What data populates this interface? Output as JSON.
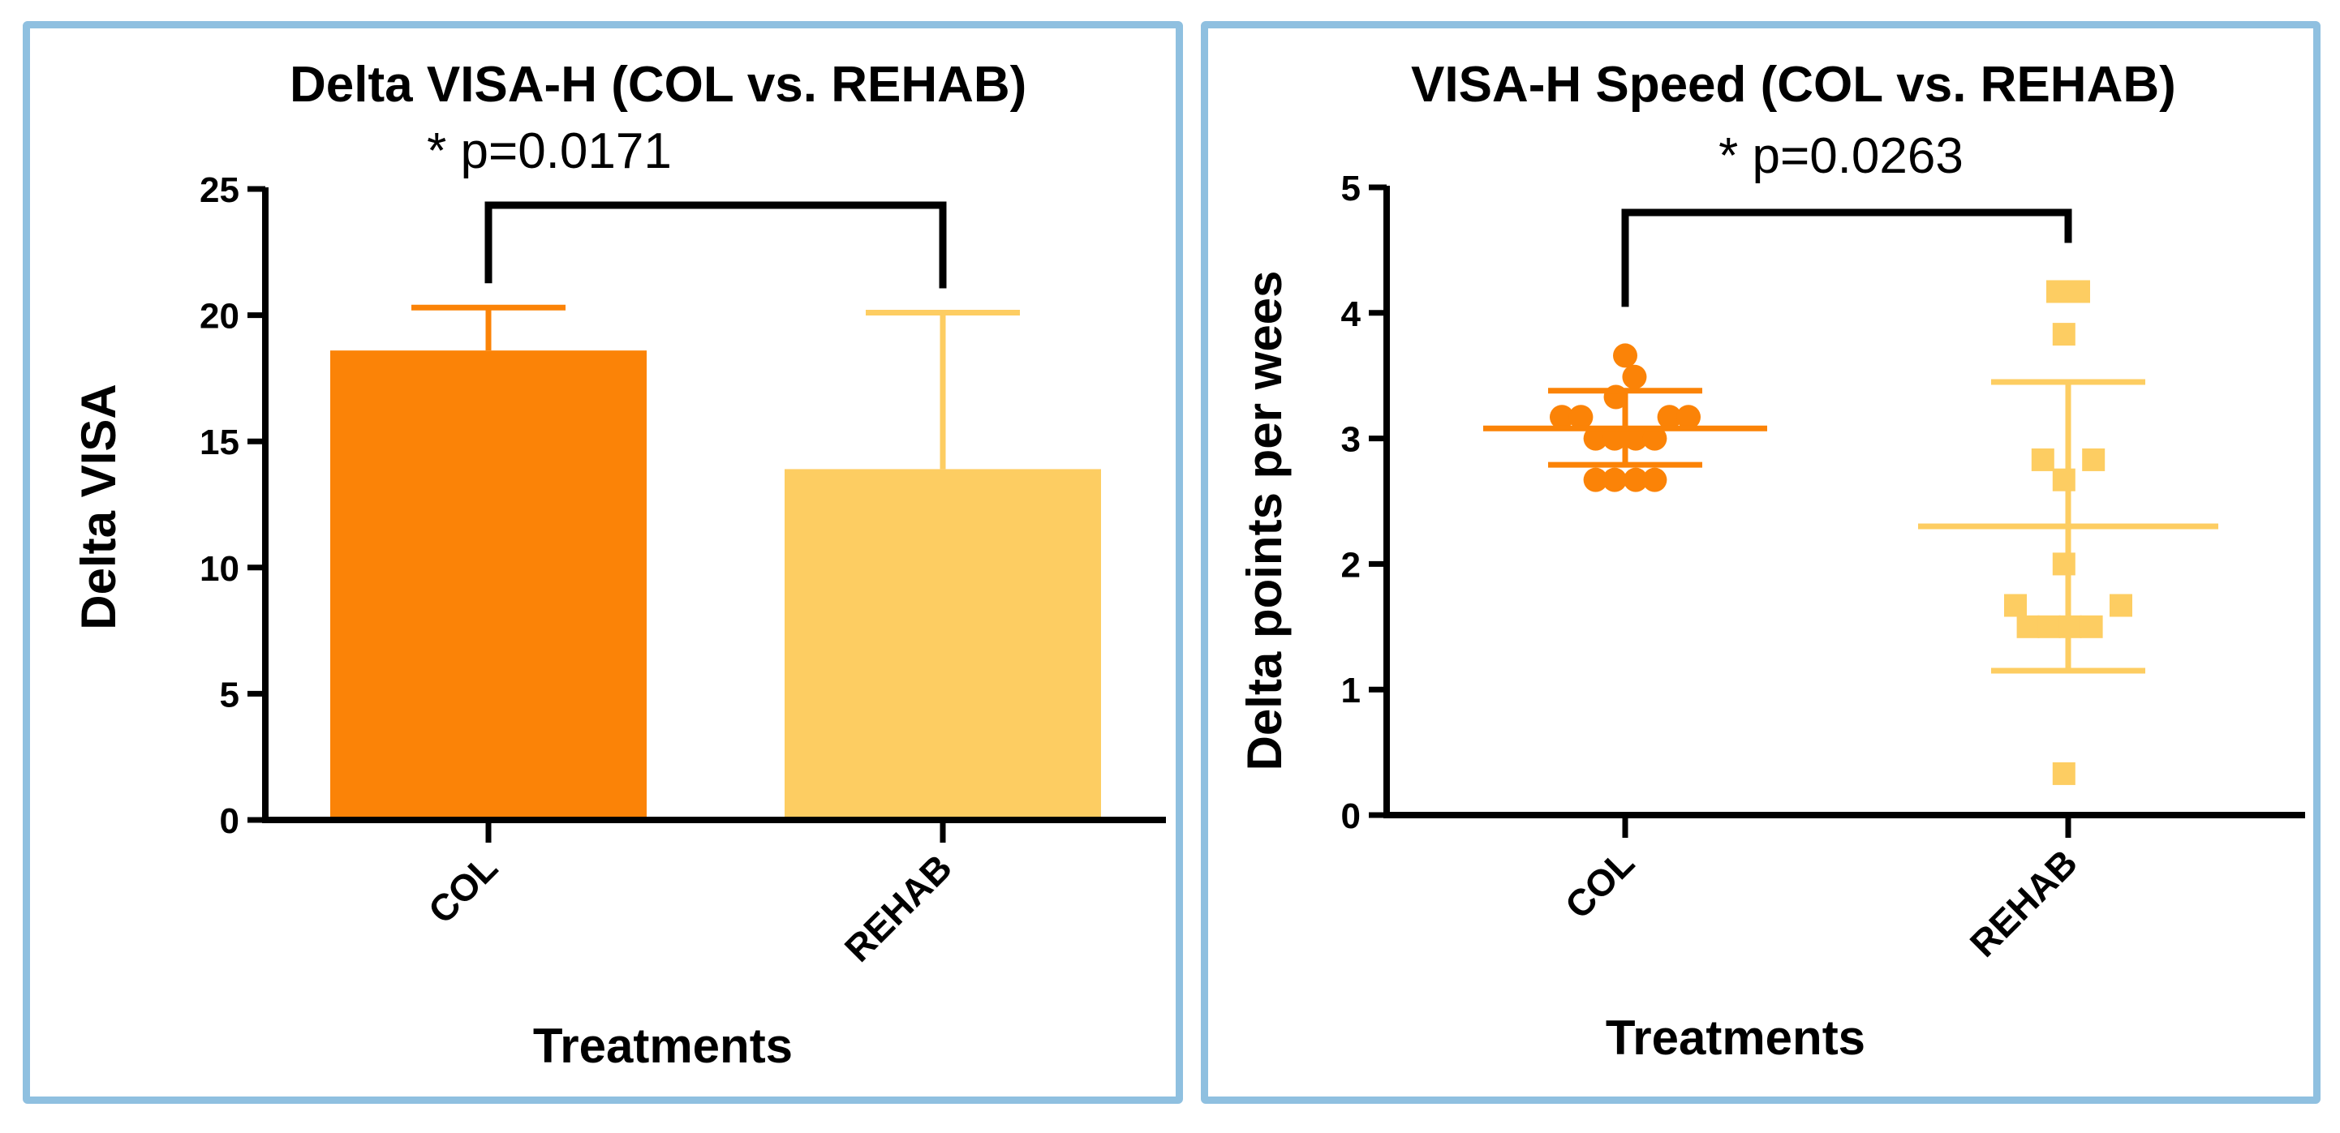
{
  "chart_data": [
    {
      "type": "bar",
      "title": "Delta VISA-H (COL vs. REHAB)",
      "annotation": "* p=0.0171",
      "xlabel": "Treatments",
      "ylabel": "Delta VISA",
      "ylim": [
        0,
        25
      ],
      "yticks": [
        "0",
        "5",
        "10",
        "15",
        "20",
        "25"
      ],
      "categories": [
        "COL",
        "REHAB"
      ],
      "values": [
        18.6,
        13.9
      ],
      "error_upper": [
        20.3,
        20.1
      ],
      "colors": [
        "#fb8307",
        "#fdcd62"
      ]
    },
    {
      "type": "scatter",
      "title": "VISA-H Speed (COL vs. REHAB)",
      "annotation": "* p=0.0263",
      "xlabel": "Treatments",
      "ylabel": "Delta points per wees",
      "ylim": [
        0,
        5
      ],
      "yticks": [
        "0",
        "1",
        "2",
        "3",
        "4",
        "5"
      ],
      "categories": [
        "COL",
        "REHAB"
      ],
      "colors": [
        "#fb8307",
        "#fdcd62"
      ],
      "series": [
        {
          "name": "COL",
          "marker": "circle",
          "mean": 3.08,
          "sd_low": 2.79,
          "sd_high": 3.38,
          "points": [
            {
              "offset": 0,
              "y": 3.66
            },
            {
              "offset": 0.22,
              "y": 3.49
            },
            {
              "offset": -0.22,
              "y": 3.33
            },
            {
              "offset": -1.5,
              "y": 3.17
            },
            {
              "offset": -1.05,
              "y": 3.17
            },
            {
              "offset": 1.05,
              "y": 3.17
            },
            {
              "offset": 1.5,
              "y": 3.17
            },
            {
              "offset": -0.7,
              "y": 3.0
            },
            {
              "offset": -0.25,
              "y": 3.0
            },
            {
              "offset": 0.25,
              "y": 3.0
            },
            {
              "offset": 0.7,
              "y": 3.0
            },
            {
              "offset": -0.7,
              "y": 2.67
            },
            {
              "offset": -0.25,
              "y": 2.67
            },
            {
              "offset": 0.25,
              "y": 2.67
            },
            {
              "offset": 0.7,
              "y": 2.67
            }
          ]
        },
        {
          "name": "REHAB",
          "marker": "square",
          "mean": 2.3,
          "sd_low": 1.15,
          "sd_high": 3.45,
          "points": [
            {
              "offset": -0.25,
              "y": 4.17
            },
            {
              "offset": 0.25,
              "y": 4.17
            },
            {
              "offset": -0.1,
              "y": 3.83
            },
            {
              "offset": -0.6,
              "y": 2.83
            },
            {
              "offset": 0.6,
              "y": 2.83
            },
            {
              "offset": -0.1,
              "y": 2.67
            },
            {
              "offset": -0.1,
              "y": 2.0
            },
            {
              "offset": -1.25,
              "y": 1.67
            },
            {
              "offset": 1.25,
              "y": 1.67
            },
            {
              "offset": -0.95,
              "y": 1.5
            },
            {
              "offset": -0.45,
              "y": 1.5
            },
            {
              "offset": 0.05,
              "y": 1.5
            },
            {
              "offset": 0.55,
              "y": 1.5
            },
            {
              "offset": -0.1,
              "y": 0.33
            }
          ]
        }
      ]
    }
  ]
}
